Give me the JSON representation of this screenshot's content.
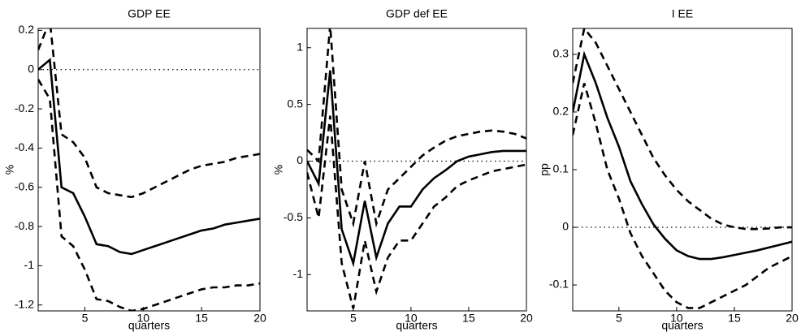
{
  "chart_data": [
    {
      "type": "line",
      "title": "GDP EE",
      "xlabel": "quarters",
      "ylabel": "%",
      "x": [
        1,
        2,
        3,
        4,
        5,
        6,
        7,
        8,
        9,
        10,
        11,
        12,
        13,
        14,
        15,
        16,
        17,
        18,
        19,
        20
      ],
      "xlim": [
        1,
        20
      ],
      "xticks": [
        5,
        10,
        15,
        20
      ],
      "ylim": [
        -1.23,
        0.21
      ],
      "yticks": [
        -1.2,
        -1,
        -0.8,
        -0.6,
        -0.4,
        -0.2,
        0,
        0.2
      ],
      "reference_line": 0,
      "series": [
        {
          "color": "#000000",
          "dash": "solid",
          "values": [
            0,
            0.05,
            -0.6,
            -0.63,
            -0.75,
            -0.89,
            -0.9,
            -0.93,
            -0.94,
            -0.92,
            -0.9,
            -0.88,
            -0.86,
            -0.84,
            -0.82,
            -0.81,
            -0.79,
            -0.78,
            -0.77,
            -0.76
          ]
        },
        {
          "color": "#000000",
          "dash": "dashed",
          "values": [
            0.1,
            0.25,
            -0.33,
            -0.37,
            -0.45,
            -0.6,
            -0.63,
            -0.64,
            -0.65,
            -0.63,
            -0.6,
            -0.57,
            -0.54,
            -0.51,
            -0.49,
            -0.48,
            -0.47,
            -0.45,
            -0.44,
            -0.43
          ]
        },
        {
          "color": "#000000",
          "dash": "dashed",
          "values": [
            -0.05,
            -0.15,
            -0.85,
            -0.9,
            -1.02,
            -1.17,
            -1.18,
            -1.21,
            -1.23,
            -1.22,
            -1.2,
            -1.18,
            -1.16,
            -1.14,
            -1.12,
            -1.11,
            -1.11,
            -1.1,
            -1.1,
            -1.09
          ]
        }
      ]
    },
    {
      "type": "line",
      "title": "GDP def EE",
      "xlabel": "quarters",
      "ylabel": "%",
      "x": [
        1,
        2,
        3,
        4,
        5,
        6,
        7,
        8,
        9,
        10,
        11,
        12,
        13,
        14,
        15,
        16,
        17,
        18,
        19,
        20
      ],
      "xlim": [
        1,
        20
      ],
      "xticks": [
        5,
        10,
        15,
        20
      ],
      "ylim": [
        -1.32,
        1.17
      ],
      "yticks": [
        -1,
        -0.5,
        0,
        0.5,
        1
      ],
      "reference_line": 0,
      "series": [
        {
          "color": "#000000",
          "dash": "solid",
          "values": [
            0,
            -0.2,
            0.8,
            -0.6,
            -0.9,
            -0.35,
            -0.85,
            -0.55,
            -0.4,
            -0.4,
            -0.25,
            -0.15,
            -0.08,
            0,
            0.04,
            0.06,
            0.08,
            0.09,
            0.09,
            0.09
          ]
        },
        {
          "color": "#000000",
          "dash": "dashed",
          "values": [
            0.1,
            0,
            1.2,
            -0.25,
            -0.55,
            0,
            -0.55,
            -0.25,
            -0.15,
            -0.05,
            0.05,
            0.12,
            0.18,
            0.22,
            0.24,
            0.26,
            0.27,
            0.26,
            0.24,
            0.2
          ]
        },
        {
          "color": "#000000",
          "dash": "dashed",
          "values": [
            -0.1,
            -0.5,
            0.4,
            -0.9,
            -1.3,
            -0.7,
            -1.15,
            -0.85,
            -0.7,
            -0.7,
            -0.55,
            -0.4,
            -0.32,
            -0.22,
            -0.17,
            -0.13,
            -0.09,
            -0.07,
            -0.05,
            -0.03
          ]
        }
      ]
    },
    {
      "type": "line",
      "title": "I EE",
      "xlabel": "quarters",
      "ylabel": "pp",
      "x": [
        1,
        2,
        3,
        4,
        5,
        6,
        7,
        8,
        9,
        10,
        11,
        12,
        13,
        14,
        15,
        16,
        17,
        18,
        19,
        20
      ],
      "xlim": [
        1,
        20
      ],
      "xticks": [
        5,
        10,
        15,
        20
      ],
      "ylim": [
        -0.145,
        0.345
      ],
      "yticks": [
        -0.1,
        0,
        0.1,
        0.2,
        0.3
      ],
      "reference_line": 0,
      "series": [
        {
          "color": "#000000",
          "dash": "solid",
          "values": [
            0.2,
            0.3,
            0.25,
            0.19,
            0.14,
            0.08,
            0.04,
            0.005,
            -0.02,
            -0.04,
            -0.05,
            -0.055,
            -0.055,
            -0.052,
            -0.048,
            -0.044,
            -0.04,
            -0.035,
            -0.03,
            -0.025
          ]
        },
        {
          "color": "#000000",
          "dash": "dashed",
          "values": [
            0.25,
            0.345,
            0.32,
            0.28,
            0.24,
            0.2,
            0.16,
            0.12,
            0.09,
            0.065,
            0.045,
            0.03,
            0.015,
            0.005,
            0,
            -0.003,
            -0.003,
            -0.002,
            0,
            0
          ]
        },
        {
          "color": "#000000",
          "dash": "dashed",
          "values": [
            0.16,
            0.25,
            0.18,
            0.1,
            0.05,
            -0.01,
            -0.05,
            -0.08,
            -0.11,
            -0.13,
            -0.14,
            -0.14,
            -0.13,
            -0.12,
            -0.11,
            -0.1,
            -0.085,
            -0.07,
            -0.06,
            -0.05
          ]
        }
      ]
    }
  ]
}
